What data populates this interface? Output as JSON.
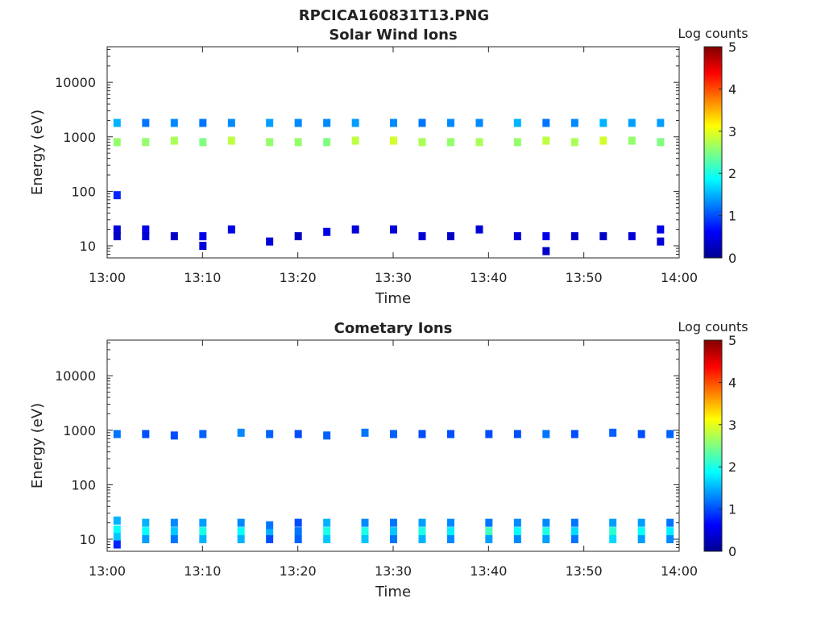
{
  "figure_title": "RPCICA160831T13.PNG",
  "chart_data": [
    {
      "type": "heatmap",
      "title": "Solar Wind Ions",
      "xlabel": "Time",
      "ylabel": "Energy (eV)",
      "yscale": "log",
      "ylim": [
        6,
        45000
      ],
      "xlim": [
        "13:00",
        "14:00"
      ],
      "xticks": [
        "13:00",
        "13:10",
        "13:20",
        "13:30",
        "13:40",
        "13:50",
        "14:00"
      ],
      "yticks": [
        10,
        100,
        1000,
        10000
      ],
      "ytick_labels": [
        "10",
        "100",
        "1000",
        "10000"
      ],
      "colorbar": {
        "label": "Log counts",
        "range": [
          0,
          5
        ],
        "ticks": [
          "0",
          "1",
          "2",
          "3",
          "4",
          "5"
        ]
      },
      "cells": [
        {
          "t": "13:01",
          "e": 800,
          "v": 2.6
        },
        {
          "t": "13:01",
          "e": 1800,
          "v": 1.5
        },
        {
          "t": "13:01",
          "e": 85,
          "v": 0.8
        },
        {
          "t": "13:01",
          "e": 20,
          "v": 0.4
        },
        {
          "t": "13:01",
          "e": 15,
          "v": 0.3
        },
        {
          "t": "13:04",
          "e": 800,
          "v": 2.6
        },
        {
          "t": "13:04",
          "e": 1800,
          "v": 1.2
        },
        {
          "t": "13:04",
          "e": 20,
          "v": 0.5
        },
        {
          "t": "13:04",
          "e": 15,
          "v": 0.4
        },
        {
          "t": "13:07",
          "e": 850,
          "v": 2.7
        },
        {
          "t": "13:07",
          "e": 1800,
          "v": 1.3
        },
        {
          "t": "13:07",
          "e": 15,
          "v": 0.3
        },
        {
          "t": "13:10",
          "e": 800,
          "v": 2.5
        },
        {
          "t": "13:10",
          "e": 1800,
          "v": 1.2
        },
        {
          "t": "13:10",
          "e": 15,
          "v": 0.5
        },
        {
          "t": "13:10",
          "e": 10,
          "v": 0.4
        },
        {
          "t": "13:13",
          "e": 850,
          "v": 2.8
        },
        {
          "t": "13:13",
          "e": 1800,
          "v": 1.3
        },
        {
          "t": "13:13",
          "e": 20,
          "v": 0.5
        },
        {
          "t": "13:17",
          "e": 800,
          "v": 2.6
        },
        {
          "t": "13:17",
          "e": 1800,
          "v": 1.4
        },
        {
          "t": "13:17",
          "e": 12,
          "v": 0.4
        },
        {
          "t": "13:20",
          "e": 800,
          "v": 2.6
        },
        {
          "t": "13:20",
          "e": 1800,
          "v": 1.3
        },
        {
          "t": "13:20",
          "e": 15,
          "v": 0.3
        },
        {
          "t": "13:23",
          "e": 800,
          "v": 2.5
        },
        {
          "t": "13:23",
          "e": 1800,
          "v": 1.3
        },
        {
          "t": "13:23",
          "e": 18,
          "v": 0.5
        },
        {
          "t": "13:26",
          "e": 850,
          "v": 2.8
        },
        {
          "t": "13:26",
          "e": 1800,
          "v": 1.4
        },
        {
          "t": "13:26",
          "e": 20,
          "v": 0.4
        },
        {
          "t": "13:30",
          "e": 850,
          "v": 2.9
        },
        {
          "t": "13:30",
          "e": 1800,
          "v": 1.3
        },
        {
          "t": "13:30",
          "e": 20,
          "v": 0.4
        },
        {
          "t": "13:33",
          "e": 800,
          "v": 2.7
        },
        {
          "t": "13:33",
          "e": 1800,
          "v": 1.2
        },
        {
          "t": "13:33",
          "e": 15,
          "v": 0.4
        },
        {
          "t": "13:36",
          "e": 800,
          "v": 2.6
        },
        {
          "t": "13:36",
          "e": 1800,
          "v": 1.3
        },
        {
          "t": "13:36",
          "e": 15,
          "v": 0.3
        },
        {
          "t": "13:39",
          "e": 800,
          "v": 2.7
        },
        {
          "t": "13:39",
          "e": 1800,
          "v": 1.3
        },
        {
          "t": "13:39",
          "e": 20,
          "v": 0.4
        },
        {
          "t": "13:43",
          "e": 800,
          "v": 2.6
        },
        {
          "t": "13:43",
          "e": 1800,
          "v": 1.5
        },
        {
          "t": "13:43",
          "e": 15,
          "v": 0.4
        },
        {
          "t": "13:46",
          "e": 850,
          "v": 2.8
        },
        {
          "t": "13:46",
          "e": 1800,
          "v": 1.2
        },
        {
          "t": "13:46",
          "e": 15,
          "v": 0.5
        },
        {
          "t": "13:46",
          "e": 8,
          "v": 0.3
        },
        {
          "t": "13:49",
          "e": 800,
          "v": 2.7
        },
        {
          "t": "13:49",
          "e": 1800,
          "v": 1.3
        },
        {
          "t": "13:49",
          "e": 15,
          "v": 0.3
        },
        {
          "t": "13:52",
          "e": 850,
          "v": 2.9
        },
        {
          "t": "13:52",
          "e": 1800,
          "v": 1.5
        },
        {
          "t": "13:52",
          "e": 15,
          "v": 0.3
        },
        {
          "t": "13:55",
          "e": 850,
          "v": 2.6
        },
        {
          "t": "13:55",
          "e": 1800,
          "v": 1.4
        },
        {
          "t": "13:55",
          "e": 15,
          "v": 0.4
        },
        {
          "t": "13:58",
          "e": 800,
          "v": 2.5
        },
        {
          "t": "13:58",
          "e": 1800,
          "v": 1.4
        },
        {
          "t": "13:58",
          "e": 20,
          "v": 0.5
        },
        {
          "t": "13:58",
          "e": 12,
          "v": 0.4
        }
      ]
    },
    {
      "type": "heatmap",
      "title": "Cometary Ions",
      "xlabel": "Time",
      "ylabel": "Energy (eV)",
      "yscale": "log",
      "ylim": [
        6,
        45000
      ],
      "xlim": [
        "13:00",
        "14:00"
      ],
      "xticks": [
        "13:00",
        "13:10",
        "13:20",
        "13:30",
        "13:40",
        "13:50",
        "14:00"
      ],
      "yticks": [
        10,
        100,
        1000,
        10000
      ],
      "ytick_labels": [
        "10",
        "100",
        "1000",
        "10000"
      ],
      "colorbar": {
        "label": "Log counts",
        "range": [
          0,
          5
        ],
        "ticks": [
          "0",
          "1",
          "2",
          "3",
          "4",
          "5"
        ]
      },
      "cells": [
        {
          "t": "13:01",
          "e": 850,
          "v": 1.2
        },
        {
          "t": "13:01",
          "e": 22,
          "v": 1.5
        },
        {
          "t": "13:01",
          "e": 15,
          "v": 1.9
        },
        {
          "t": "13:01",
          "e": 11,
          "v": 1.6
        },
        {
          "t": "13:01",
          "e": 8,
          "v": 0.8
        },
        {
          "t": "13:04",
          "e": 850,
          "v": 1.0
        },
        {
          "t": "13:04",
          "e": 20,
          "v": 1.5
        },
        {
          "t": "13:04",
          "e": 14,
          "v": 1.9
        },
        {
          "t": "13:04",
          "e": 10,
          "v": 1.4
        },
        {
          "t": "13:07",
          "e": 800,
          "v": 1.0
        },
        {
          "t": "13:07",
          "e": 20,
          "v": 1.3
        },
        {
          "t": "13:07",
          "e": 14,
          "v": 1.6
        },
        {
          "t": "13:07",
          "e": 10,
          "v": 1.2
        },
        {
          "t": "13:10",
          "e": 850,
          "v": 1.1
        },
        {
          "t": "13:10",
          "e": 20,
          "v": 1.4
        },
        {
          "t": "13:10",
          "e": 14,
          "v": 2.0
        },
        {
          "t": "13:10",
          "e": 10,
          "v": 1.5
        },
        {
          "t": "13:14",
          "e": 900,
          "v": 1.3
        },
        {
          "t": "13:14",
          "e": 20,
          "v": 1.3
        },
        {
          "t": "13:14",
          "e": 14,
          "v": 1.9
        },
        {
          "t": "13:14",
          "e": 10,
          "v": 1.5
        },
        {
          "t": "13:17",
          "e": 850,
          "v": 1.1
        },
        {
          "t": "13:17",
          "e": 18,
          "v": 1.2
        },
        {
          "t": "13:17",
          "e": 13,
          "v": 1.5
        },
        {
          "t": "13:17",
          "e": 10,
          "v": 1.0
        },
        {
          "t": "13:20",
          "e": 850,
          "v": 1.0
        },
        {
          "t": "13:20",
          "e": 20,
          "v": 1.0
        },
        {
          "t": "13:20",
          "e": 14,
          "v": 1.2
        },
        {
          "t": "13:20",
          "e": 10,
          "v": 1.1
        },
        {
          "t": "13:23",
          "e": 800,
          "v": 1.1
        },
        {
          "t": "13:23",
          "e": 20,
          "v": 1.5
        },
        {
          "t": "13:23",
          "e": 14,
          "v": 2.0
        },
        {
          "t": "13:23",
          "e": 10,
          "v": 1.6
        },
        {
          "t": "13:27",
          "e": 900,
          "v": 1.2
        },
        {
          "t": "13:27",
          "e": 20,
          "v": 1.3
        },
        {
          "t": "13:27",
          "e": 14,
          "v": 2.0
        },
        {
          "t": "13:27",
          "e": 10,
          "v": 1.6
        },
        {
          "t": "13:30",
          "e": 850,
          "v": 1.1
        },
        {
          "t": "13:30",
          "e": 20,
          "v": 1.2
        },
        {
          "t": "13:30",
          "e": 14,
          "v": 1.6
        },
        {
          "t": "13:30",
          "e": 10,
          "v": 1.2
        },
        {
          "t": "13:33",
          "e": 850,
          "v": 1.0
        },
        {
          "t": "13:33",
          "e": 20,
          "v": 1.4
        },
        {
          "t": "13:33",
          "e": 14,
          "v": 2.0
        },
        {
          "t": "13:33",
          "e": 10,
          "v": 1.5
        },
        {
          "t": "13:36",
          "e": 850,
          "v": 1.0
        },
        {
          "t": "13:36",
          "e": 20,
          "v": 1.3
        },
        {
          "t": "13:36",
          "e": 14,
          "v": 1.8
        },
        {
          "t": "13:36",
          "e": 10,
          "v": 1.3
        },
        {
          "t": "13:40",
          "e": 850,
          "v": 1.0
        },
        {
          "t": "13:40",
          "e": 20,
          "v": 1.2
        },
        {
          "t": "13:40",
          "e": 14,
          "v": 2.2
        },
        {
          "t": "13:40",
          "e": 10,
          "v": 1.4
        },
        {
          "t": "13:43",
          "e": 850,
          "v": 1.0
        },
        {
          "t": "13:43",
          "e": 20,
          "v": 1.3
        },
        {
          "t": "13:43",
          "e": 14,
          "v": 1.9
        },
        {
          "t": "13:43",
          "e": 10,
          "v": 1.3
        },
        {
          "t": "13:46",
          "e": 850,
          "v": 1.2
        },
        {
          "t": "13:46",
          "e": 20,
          "v": 1.3
        },
        {
          "t": "13:46",
          "e": 14,
          "v": 2.0
        },
        {
          "t": "13:46",
          "e": 10,
          "v": 1.4
        },
        {
          "t": "13:49",
          "e": 850,
          "v": 1.0
        },
        {
          "t": "13:49",
          "e": 20,
          "v": 1.2
        },
        {
          "t": "13:49",
          "e": 14,
          "v": 1.7
        },
        {
          "t": "13:49",
          "e": 10,
          "v": 1.2
        },
        {
          "t": "13:53",
          "e": 900,
          "v": 1.1
        },
        {
          "t": "13:53",
          "e": 20,
          "v": 1.4
        },
        {
          "t": "13:53",
          "e": 14,
          "v": 2.1
        },
        {
          "t": "13:53",
          "e": 10,
          "v": 1.7
        },
        {
          "t": "13:56",
          "e": 850,
          "v": 1.0
        },
        {
          "t": "13:56",
          "e": 20,
          "v": 1.4
        },
        {
          "t": "13:56",
          "e": 14,
          "v": 1.9
        },
        {
          "t": "13:56",
          "e": 10,
          "v": 1.4
        },
        {
          "t": "13:59",
          "e": 850,
          "v": 1.1
        },
        {
          "t": "13:59",
          "e": 20,
          "v": 1.2
        },
        {
          "t": "13:59",
          "e": 14,
          "v": 1.8
        },
        {
          "t": "13:59",
          "e": 10,
          "v": 1.3
        }
      ]
    }
  ]
}
